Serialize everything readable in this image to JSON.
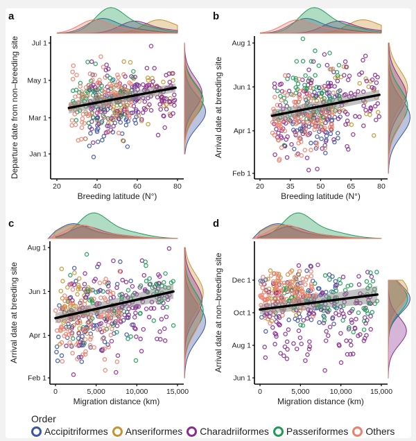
{
  "figure": {
    "legend": {
      "title": "Order",
      "entries": [
        {
          "name": "Accipitriformes",
          "color": "#3b55a4"
        },
        {
          "name": "Anseriformes",
          "color": "#c89234"
        },
        {
          "name": "Charadriiformes",
          "color": "#8a2b8f"
        },
        {
          "name": "Passeriformes",
          "color": "#1f9a57"
        },
        {
          "name": "Others",
          "color": "#ee7f6c"
        }
      ]
    }
  },
  "chart_data": [
    {
      "panel": "a",
      "type": "scatter",
      "title": "",
      "xlabel": "Breeding latitude (N°)",
      "ylabel": "Departure date from non–breeding site",
      "xlim": [
        18,
        83
      ],
      "ylim": [
        -40,
        185
      ],
      "x_ticks": [
        {
          "value": 20,
          "label": "20"
        },
        {
          "value": 40,
          "label": "40"
        },
        {
          "value": 60,
          "label": "60"
        },
        {
          "value": 80,
          "label": "80"
        }
      ],
      "y_ticks": [
        {
          "value": 1,
          "label": "Jan 1"
        },
        {
          "value": 60,
          "label": "Mar 1"
        },
        {
          "value": 121,
          "label": "May 1"
        },
        {
          "value": 182,
          "label": "Jul 1"
        }
      ],
      "y_units": "day of year",
      "regression": {
        "x": [
          26,
          79
        ],
        "y": [
          76,
          109
        ],
        "ci_halfwidth": [
          9,
          7
        ]
      },
      "series": [
        {
          "name": "Accipitriformes",
          "n": 70,
          "x_range": [
            36,
            60
          ],
          "y_mean": 72,
          "y_sd": 28
        },
        {
          "name": "Anseriformes",
          "n": 45,
          "x_range": [
            45,
            79
          ],
          "y_mean": 92,
          "y_sd": 24
        },
        {
          "name": "Charadriiformes",
          "n": 140,
          "x_range": [
            36,
            79
          ],
          "y_mean": 95,
          "y_sd": 28
        },
        {
          "name": "Passeriformes",
          "n": 75,
          "x_range": [
            28,
            60
          ],
          "y_mean": 92,
          "y_sd": 22
        },
        {
          "name": "Others",
          "n": 110,
          "x_range": [
            26,
            58
          ],
          "y_mean": 88,
          "y_sd": 26
        }
      ],
      "marginal_x_peaks": {
        "Accipitriformes": 42,
        "Anseriformes": 70,
        "Charadriiformes": 58,
        "Passeriformes": 46,
        "Others": 38
      },
      "marginal_y_peaks": {
        "Accipitriformes": 70,
        "Anseriformes": 90,
        "Charadriiformes": 100,
        "Passeriformes": 88,
        "Others": 85
      }
    },
    {
      "panel": "b",
      "type": "scatter",
      "xlabel": "Breeding latitude (N°)",
      "ylabel": "Arrival date at breeding site",
      "xlim": [
        18,
        83
      ],
      "ylim": [
        25,
        220
      ],
      "x_ticks": [
        {
          "value": 20,
          "label": "20"
        },
        {
          "value": 35,
          "label": "35"
        },
        {
          "value": 50,
          "label": "50"
        },
        {
          "value": 65,
          "label": "65"
        },
        {
          "value": 80,
          "label": "80"
        }
      ],
      "y_ticks": [
        {
          "value": 32,
          "label": "Feb 1"
        },
        {
          "value": 91,
          "label": "Apr 1"
        },
        {
          "value": 152,
          "label": "Jun 1"
        },
        {
          "value": 213,
          "label": "Aug 1"
        }
      ],
      "y_units": "day of year",
      "regression": {
        "x": [
          26,
          79
        ],
        "y": [
          112,
          141
        ],
        "ci_halfwidth": [
          8,
          7
        ]
      },
      "series": [
        {
          "name": "Accipitriformes",
          "n": 70,
          "x_range": [
            36,
            60
          ],
          "y_mean": 105,
          "y_sd": 28
        },
        {
          "name": "Anseriformes",
          "n": 45,
          "x_range": [
            45,
            79
          ],
          "y_mean": 135,
          "y_sd": 25
        },
        {
          "name": "Charadriiformes",
          "n": 140,
          "x_range": [
            26,
            79
          ],
          "y_mean": 125,
          "y_sd": 30
        },
        {
          "name": "Passeriformes",
          "n": 75,
          "x_range": [
            28,
            60
          ],
          "y_mean": 140,
          "y_sd": 28
        },
        {
          "name": "Others",
          "n": 110,
          "x_range": [
            26,
            58
          ],
          "y_mean": 110,
          "y_sd": 26
        }
      ],
      "marginal_x_peaks": {
        "Accipitriformes": 42,
        "Anseriformes": 70,
        "Charadriiformes": 58,
        "Passeriformes": 46,
        "Others": 38
      },
      "marginal_y_peaks": {
        "Accipitriformes": 110,
        "Anseriformes": 150,
        "Charadriiformes": 140,
        "Passeriformes": 125,
        "Others": 120
      }
    },
    {
      "panel": "c",
      "type": "scatter",
      "xlabel": "Migration distance (km)",
      "ylabel": "Arrival date at breeding site",
      "xlim": [
        -700,
        15700
      ],
      "ylim": [
        25,
        220
      ],
      "x_ticks": [
        {
          "value": 0,
          "label": "0"
        },
        {
          "value": 5000,
          "label": "5,000"
        },
        {
          "value": 10000,
          "label": "10,000"
        },
        {
          "value": 15000,
          "label": "15,000"
        }
      ],
      "y_ticks": [
        {
          "value": 32,
          "label": "Feb 1"
        },
        {
          "value": 91,
          "label": "Apr 1"
        },
        {
          "value": 152,
          "label": "Jun 1"
        },
        {
          "value": 213,
          "label": "Aug 1"
        }
      ],
      "y_units": "day of year",
      "regression": {
        "x": [
          0,
          14500
        ],
        "y": [
          115,
          152
        ],
        "ci_halfwidth": [
          7,
          10
        ]
      },
      "series": [
        {
          "name": "Accipitriformes",
          "n": 70,
          "x_range": [
            0,
            9500
          ],
          "y_mean": 110,
          "y_sd": 28
        },
        {
          "name": "Anseriformes",
          "n": 45,
          "x_range": [
            500,
            4500
          ],
          "y_mean": 135,
          "y_sd": 25
        },
        {
          "name": "Charadriiformes",
          "n": 140,
          "x_range": [
            1000,
            14000
          ],
          "y_mean": 125,
          "y_sd": 30
        },
        {
          "name": "Passeriformes",
          "n": 75,
          "x_range": [
            1500,
            14500
          ],
          "y_mean": 135,
          "y_sd": 28
        },
        {
          "name": "Others",
          "n": 110,
          "x_range": [
            0,
            8000
          ],
          "y_mean": 110,
          "y_sd": 28
        }
      ],
      "marginal_x_peaks": {
        "Accipitriformes": 2000,
        "Anseriformes": 2000,
        "Charadriiformes": 3500,
        "Passeriformes": 4500,
        "Others": 3000
      },
      "marginal_y_peaks": {
        "Accipitriformes": 110,
        "Anseriformes": 150,
        "Charadriiformes": 140,
        "Passeriformes": 125,
        "Others": 120
      }
    },
    {
      "panel": "d",
      "type": "scatter",
      "xlabel": "Migration distance (km)",
      "ylabel": "Arrival date at non–breeding site",
      "xlim": [
        -700,
        15700
      ],
      "ylim": [
        140,
        380
      ],
      "x_ticks": [
        {
          "value": 0,
          "label": "0"
        },
        {
          "value": 5000,
          "label": "5,000"
        },
        {
          "value": 10000,
          "label": "10,000"
        },
        {
          "value": 15000,
          "label": "15,000"
        }
      ],
      "y_ticks": [
        {
          "value": 152,
          "label": "Jun 1"
        },
        {
          "value": 213,
          "label": "Aug 1"
        },
        {
          "value": 274,
          "label": "Oct 1"
        },
        {
          "value": 335,
          "label": "Dec 1"
        }
      ],
      "y_units": "day of year",
      "regression": {
        "x": [
          0,
          14500
        ],
        "y": [
          280,
          308
        ],
        "ci_halfwidth": [
          9,
          16
        ]
      },
      "series": [
        {
          "name": "Accipitriformes",
          "n": 70,
          "x_range": [
            0,
            10000
          ],
          "y_mean": 300,
          "y_sd": 30
        },
        {
          "name": "Anseriformes",
          "n": 45,
          "x_range": [
            500,
            5000
          ],
          "y_mean": 305,
          "y_sd": 25
        },
        {
          "name": "Charadriiformes",
          "n": 140,
          "x_range": [
            500,
            14000
          ],
          "y_mean": 260,
          "y_sd": 45
        },
        {
          "name": "Passeriformes",
          "n": 75,
          "x_range": [
            1500,
            14500
          ],
          "y_mean": 295,
          "y_sd": 28
        },
        {
          "name": "Others",
          "n": 110,
          "x_range": [
            0,
            7000
          ],
          "y_mean": 310,
          "y_sd": 22
        }
      ],
      "marginal_x_peaks": {
        "Accipitriformes": 2000,
        "Anseriformes": 2000,
        "Charadriiformes": 3500,
        "Passeriformes": 4500,
        "Others": 3000
      },
      "marginal_y_peaks": {
        "Accipitriformes": 300,
        "Anseriformes": 315,
        "Charadriiformes": 240,
        "Passeriformes": 300,
        "Others": 305
      }
    }
  ]
}
